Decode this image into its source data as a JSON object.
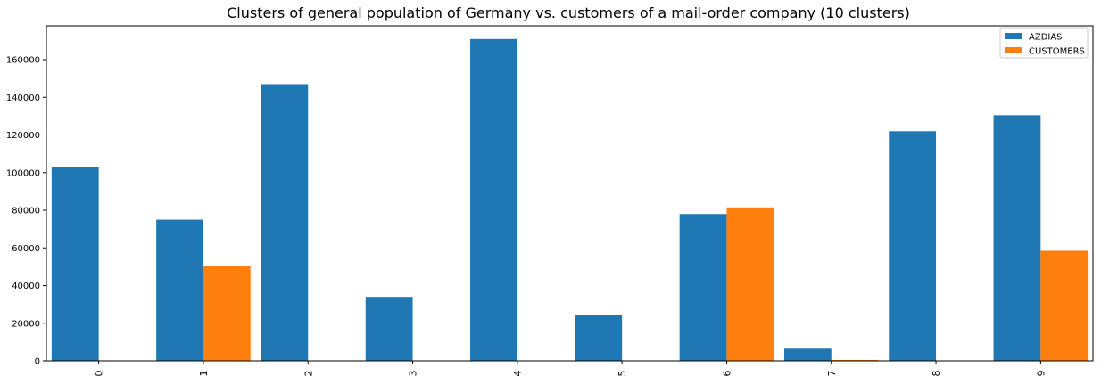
{
  "chart_data": {
    "type": "bar",
    "title": "Clusters of general population of Germany vs. customers of a mail-order company (10 clusters)",
    "xlabel": "",
    "ylabel": "",
    "categories": [
      "0",
      "1",
      "2",
      "3",
      "4",
      "5",
      "6",
      "7",
      "8",
      "9"
    ],
    "series": [
      {
        "name": "AZDIAS",
        "color": "#1f77b4",
        "values": [
          103000,
          75000,
          147000,
          34000,
          171000,
          24500,
          78000,
          6500,
          122000,
          130500
        ]
      },
      {
        "name": "CUSTOMERS",
        "color": "#ff7f0e",
        "values": [
          0,
          50500,
          0,
          0,
          0,
          0,
          81500,
          500,
          0,
          58500
        ]
      }
    ],
    "ylim": [
      0,
      178000
    ],
    "yticks": [
      0,
      20000,
      40000,
      60000,
      80000,
      100000,
      120000,
      140000,
      160000
    ],
    "legend_position": "top-right",
    "grid": false
  }
}
